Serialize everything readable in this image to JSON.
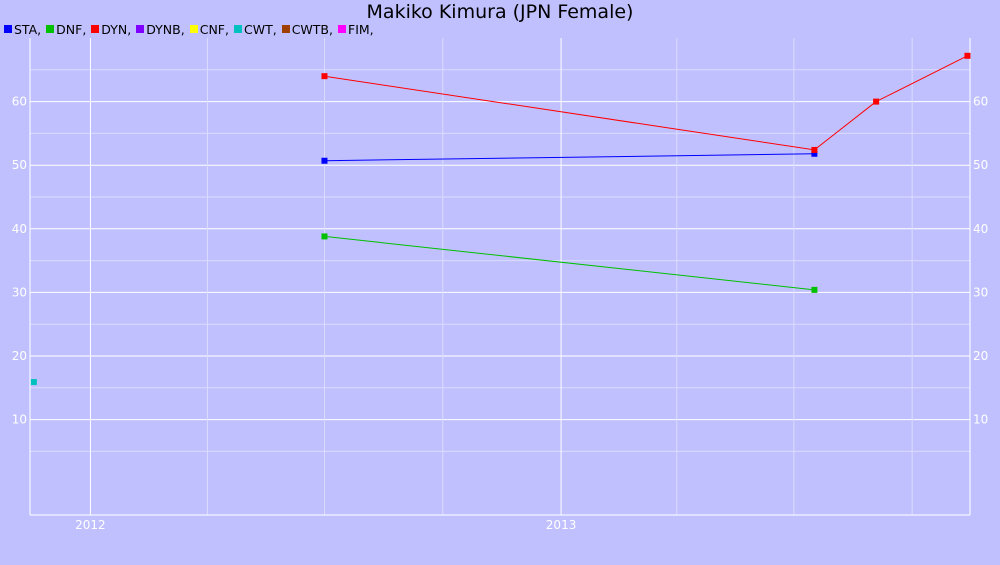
{
  "chart_data": {
    "type": "line",
    "title": "Makiko Kimura (JPN Female)",
    "xlabel": "",
    "ylabel": "",
    "x_axis": {
      "kind": "date",
      "range": [
        "2011-11-15",
        "2013-11-15"
      ],
      "ticks": [
        "2012",
        "2013"
      ]
    },
    "ylim": [
      -5,
      70
    ],
    "y_ticks": [
      10,
      20,
      30,
      40,
      50,
      60
    ],
    "grid": true,
    "legend_position": "top-left",
    "series": [
      {
        "name": "STA",
        "color": "#0000ff",
        "points": [
          {
            "x": "2012-07-01",
            "y": 50.7
          },
          {
            "x": "2013-07-17",
            "y": 51.8
          }
        ]
      },
      {
        "name": "DNF",
        "color": "#00c000",
        "points": [
          {
            "x": "2012-07-01",
            "y": 38.8
          },
          {
            "x": "2013-07-17",
            "y": 30.4
          }
        ]
      },
      {
        "name": "DYN",
        "color": "#ff0000",
        "points": [
          {
            "x": "2012-07-01",
            "y": 64.0
          },
          {
            "x": "2013-07-17",
            "y": 52.4
          },
          {
            "x": "2013-09-03",
            "y": 60.0
          },
          {
            "x": "2013-11-13",
            "y": 67.2
          }
        ]
      },
      {
        "name": "DYNB",
        "color": "#8000ff",
        "points": []
      },
      {
        "name": "CNF",
        "color": "#ffff00",
        "points": []
      },
      {
        "name": "CWT",
        "color": "#00c0c0",
        "points": [
          {
            "x": "2011-11-18",
            "y": 15.9
          }
        ]
      },
      {
        "name": "CWTB",
        "color": "#a04000",
        "points": []
      },
      {
        "name": "FIM",
        "color": "#ff00ff",
        "points": []
      }
    ]
  }
}
